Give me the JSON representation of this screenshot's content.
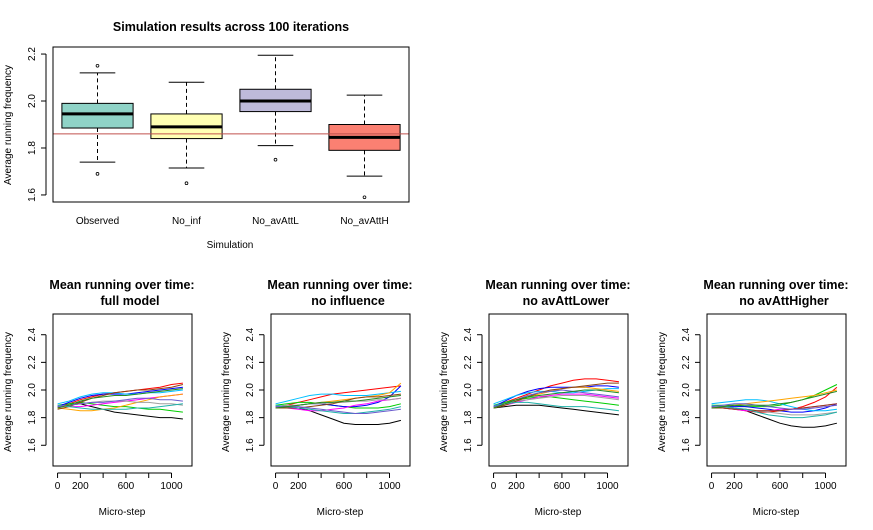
{
  "main": {
    "title": "Simulation results across 100 iterations",
    "xlabel": "Simulation",
    "ylabel": "Average running frequency",
    "reference_line_color": "#c0504d"
  },
  "chart_data": [
    {
      "type": "boxplot",
      "title": "Simulation results across 100 iterations",
      "xlabel": "Simulation",
      "ylabel": "Average running frequency",
      "ylim": [
        1.57,
        2.23
      ],
      "yticks": [
        1.6,
        1.8,
        2.0,
        2.2
      ],
      "reference_line": 1.86,
      "categories": [
        "Observed",
        "No_inf",
        "No_avAttL",
        "No_avAttH"
      ],
      "colors": [
        "#8fd3c7",
        "#ffffb3",
        "#bebada",
        "#fb8072"
      ],
      "boxes": [
        {
          "whisker_low": 1.74,
          "q1": 1.885,
          "median": 1.945,
          "q3": 1.99,
          "whisker_high": 2.12,
          "outliers": [
            1.69,
            2.15
          ]
        },
        {
          "whisker_low": 1.715,
          "q1": 1.84,
          "median": 1.89,
          "q3": 1.945,
          "whisker_high": 2.08,
          "outliers": [
            1.65
          ]
        },
        {
          "whisker_low": 1.81,
          "q1": 1.955,
          "median": 2.0,
          "q3": 2.05,
          "whisker_high": 2.195,
          "outliers": [
            1.75
          ]
        },
        {
          "whisker_low": 1.68,
          "q1": 1.79,
          "median": 1.845,
          "q3": 1.9,
          "whisker_high": 2.025,
          "outliers": [
            1.59
          ]
        }
      ]
    },
    {
      "type": "line",
      "title_line1": "Mean running over time:",
      "title_line2": "full model",
      "xlabel": "Micro-step",
      "ylabel": "Average running frequency",
      "xlim": [
        -40,
        1180
      ],
      "ylim": [
        1.45,
        2.55
      ],
      "xticks": [
        0,
        200,
        600,
        1000
      ],
      "xticklabels": [
        "0",
        "200",
        "600",
        "1000"
      ],
      "yticks": [
        1.6,
        1.8,
        2.0,
        2.2,
        2.4
      ],
      "x": [
        0,
        100,
        200,
        300,
        400,
        500,
        600,
        700,
        800,
        900,
        1000,
        1100
      ],
      "series": [
        {
          "color": "#000000",
          "values": [
            1.88,
            1.89,
            1.9,
            1.88,
            1.86,
            1.84,
            1.83,
            1.82,
            1.81,
            1.8,
            1.8,
            1.79
          ]
        },
        {
          "color": "#ff0000",
          "values": [
            1.87,
            1.9,
            1.93,
            1.95,
            1.97,
            1.98,
            1.99,
            2.0,
            2.01,
            2.02,
            2.04,
            2.05
          ]
        },
        {
          "color": "#00cd00",
          "values": [
            1.89,
            1.9,
            1.91,
            1.9,
            1.89,
            1.88,
            1.88,
            1.87,
            1.86,
            1.86,
            1.85,
            1.84
          ]
        },
        {
          "color": "#0000ff",
          "values": [
            1.88,
            1.91,
            1.94,
            1.96,
            1.97,
            1.97,
            1.97,
            1.98,
            1.99,
            2.0,
            2.01,
            2.02
          ]
        },
        {
          "color": "#00bfff",
          "values": [
            1.9,
            1.92,
            1.95,
            1.97,
            1.98,
            1.98,
            1.97,
            1.97,
            1.98,
            1.98,
            1.99,
            2.0
          ]
        },
        {
          "color": "#ff00ff",
          "values": [
            1.89,
            1.88,
            1.88,
            1.89,
            1.9,
            1.91,
            1.92,
            1.93,
            1.94,
            1.95,
            1.96,
            1.97
          ]
        },
        {
          "color": "#ffa500",
          "values": [
            1.87,
            1.86,
            1.85,
            1.85,
            1.86,
            1.87,
            1.89,
            1.91,
            1.93,
            1.95,
            1.96,
            1.97
          ]
        },
        {
          "color": "#a0a0a0",
          "values": [
            1.88,
            1.89,
            1.9,
            1.91,
            1.92,
            1.92,
            1.92,
            1.91,
            1.91,
            1.9,
            1.9,
            1.89
          ]
        },
        {
          "color": "#8b4513",
          "values": [
            1.86,
            1.88,
            1.91,
            1.94,
            1.96,
            1.98,
            1.99,
            2.0,
            2.0,
            2.01,
            2.02,
            2.04
          ]
        },
        {
          "color": "#20b2aa",
          "values": [
            1.89,
            1.88,
            1.87,
            1.86,
            1.86,
            1.86,
            1.86,
            1.87,
            1.87,
            1.88,
            1.89,
            1.9
          ]
        },
        {
          "color": "#6a5acd",
          "values": [
            1.88,
            1.89,
            1.9,
            1.91,
            1.91,
            1.92,
            1.93,
            1.94,
            1.94,
            1.93,
            1.93,
            1.92
          ]
        },
        {
          "color": "#228b22",
          "values": [
            1.87,
            1.89,
            1.92,
            1.94,
            1.95,
            1.96,
            1.96,
            1.97,
            1.98,
            1.99,
            2.0,
            2.01
          ]
        }
      ]
    },
    {
      "type": "line",
      "title_line1": "Mean running over time:",
      "title_line2": "no influence",
      "xlabel": "Micro-step",
      "ylabel": "Average running frequency",
      "xlim": [
        -40,
        1180
      ],
      "ylim": [
        1.45,
        2.55
      ],
      "xticks": [
        0,
        200,
        600,
        1000
      ],
      "xticklabels": [
        "0",
        "200",
        "600",
        "1000"
      ],
      "yticks": [
        1.6,
        1.8,
        2.0,
        2.2,
        2.4
      ],
      "x": [
        0,
        100,
        200,
        300,
        400,
        500,
        600,
        700,
        800,
        900,
        1000,
        1100
      ],
      "series": [
        {
          "color": "#000000",
          "values": [
            1.88,
            1.88,
            1.87,
            1.85,
            1.82,
            1.79,
            1.76,
            1.75,
            1.75,
            1.75,
            1.76,
            1.78
          ]
        },
        {
          "color": "#ff0000",
          "values": [
            1.88,
            1.89,
            1.91,
            1.93,
            1.95,
            1.97,
            1.98,
            1.99,
            2.0,
            2.01,
            2.02,
            2.03
          ]
        },
        {
          "color": "#00cd00",
          "values": [
            1.89,
            1.9,
            1.91,
            1.91,
            1.9,
            1.89,
            1.88,
            1.87,
            1.87,
            1.87,
            1.88,
            1.9
          ]
        },
        {
          "color": "#0000ff",
          "values": [
            1.87,
            1.88,
            1.89,
            1.9,
            1.9,
            1.89,
            1.88,
            1.88,
            1.89,
            1.91,
            1.95,
            2.03
          ]
        },
        {
          "color": "#00bfff",
          "values": [
            1.9,
            1.92,
            1.94,
            1.96,
            1.97,
            1.97,
            1.96,
            1.96,
            1.96,
            1.97,
            1.98,
            1.99
          ]
        },
        {
          "color": "#ff00ff",
          "values": [
            1.88,
            1.87,
            1.86,
            1.85,
            1.85,
            1.86,
            1.87,
            1.89,
            1.9,
            1.92,
            1.93,
            1.94
          ]
        },
        {
          "color": "#ffa500",
          "values": [
            1.87,
            1.88,
            1.89,
            1.9,
            1.91,
            1.92,
            1.93,
            1.94,
            1.95,
            1.96,
            1.98,
            2.05
          ]
        },
        {
          "color": "#a0a0a0",
          "values": [
            1.88,
            1.89,
            1.89,
            1.9,
            1.9,
            1.91,
            1.91,
            1.92,
            1.92,
            1.93,
            1.93,
            1.94
          ]
        },
        {
          "color": "#8b4513",
          "values": [
            1.87,
            1.87,
            1.87,
            1.88,
            1.89,
            1.9,
            1.92,
            1.94,
            1.95,
            1.95,
            1.96,
            1.97
          ]
        },
        {
          "color": "#20b2aa",
          "values": [
            1.89,
            1.88,
            1.87,
            1.86,
            1.85,
            1.84,
            1.83,
            1.83,
            1.84,
            1.85,
            1.86,
            1.88
          ]
        },
        {
          "color": "#6a5acd",
          "values": [
            1.88,
            1.88,
            1.88,
            1.87,
            1.86,
            1.85,
            1.84,
            1.83,
            1.83,
            1.84,
            1.85,
            1.86
          ]
        },
        {
          "color": "#228b22",
          "values": [
            1.87,
            1.88,
            1.89,
            1.9,
            1.91,
            1.91,
            1.92,
            1.92,
            1.93,
            1.94,
            1.95,
            1.96
          ]
        }
      ]
    },
    {
      "type": "line",
      "title_line1": "Mean running over time:",
      "title_line2": "no avAttLower",
      "xlabel": "Micro-step",
      "ylabel": "Average running frequency",
      "xlim": [
        -40,
        1180
      ],
      "ylim": [
        1.45,
        2.55
      ],
      "xticks": [
        0,
        200,
        600,
        1000
      ],
      "xticklabels": [
        "0",
        "200",
        "600",
        "1000"
      ],
      "yticks": [
        1.6,
        1.8,
        2.0,
        2.2,
        2.4
      ],
      "x": [
        0,
        100,
        200,
        300,
        400,
        500,
        600,
        700,
        800,
        900,
        1000,
        1100
      ],
      "series": [
        {
          "color": "#000000",
          "values": [
            1.87,
            1.88,
            1.89,
            1.89,
            1.89,
            1.88,
            1.87,
            1.86,
            1.85,
            1.84,
            1.83,
            1.82
          ]
        },
        {
          "color": "#ff0000",
          "values": [
            1.88,
            1.91,
            1.94,
            1.97,
            2.0,
            2.03,
            2.05,
            2.07,
            2.08,
            2.08,
            2.07,
            2.06
          ]
        },
        {
          "color": "#00cd00",
          "values": [
            1.89,
            1.91,
            1.93,
            1.94,
            1.95,
            1.95,
            1.94,
            1.93,
            1.92,
            1.91,
            1.9,
            1.89
          ]
        },
        {
          "color": "#0000ff",
          "values": [
            1.88,
            1.92,
            1.96,
            1.99,
            2.01,
            2.02,
            2.02,
            2.02,
            2.02,
            2.03,
            2.03,
            2.02
          ]
        },
        {
          "color": "#00bfff",
          "values": [
            1.9,
            1.93,
            1.96,
            1.98,
            1.99,
            1.99,
            1.98,
            1.98,
            1.99,
            2.0,
            2.01,
            2.01
          ]
        },
        {
          "color": "#ff00ff",
          "values": [
            1.88,
            1.89,
            1.91,
            1.93,
            1.95,
            1.96,
            1.97,
            1.97,
            1.97,
            1.96,
            1.95,
            1.94
          ]
        },
        {
          "color": "#ffa500",
          "values": [
            1.87,
            1.89,
            1.92,
            1.95,
            1.97,
            1.99,
            2.01,
            2.02,
            2.02,
            2.01,
            2.0,
            1.99
          ]
        },
        {
          "color": "#a0a0a0",
          "values": [
            1.88,
            1.9,
            1.92,
            1.93,
            1.94,
            1.95,
            1.96,
            1.96,
            1.96,
            1.95,
            1.94,
            1.93
          ]
        },
        {
          "color": "#8b4513",
          "values": [
            1.87,
            1.89,
            1.92,
            1.95,
            1.98,
            2.0,
            2.01,
            2.02,
            2.03,
            2.04,
            2.05,
            2.05
          ]
        },
        {
          "color": "#20b2aa",
          "values": [
            1.89,
            1.9,
            1.91,
            1.91,
            1.9,
            1.89,
            1.88,
            1.88,
            1.88,
            1.87,
            1.86,
            1.85
          ]
        },
        {
          "color": "#6a5acd",
          "values": [
            1.88,
            1.9,
            1.93,
            1.96,
            1.98,
            1.99,
            2.0,
            1.99,
            1.98,
            1.97,
            1.96,
            1.95
          ]
        },
        {
          "color": "#228b22",
          "values": [
            1.87,
            1.9,
            1.93,
            1.95,
            1.96,
            1.97,
            1.98,
            1.99,
            2.0,
            2.0,
            1.99,
            1.98
          ]
        }
      ]
    },
    {
      "type": "line",
      "title_line1": "Mean running over time:",
      "title_line2": "no avAttHigher",
      "xlabel": "Micro-step",
      "ylabel": "Average running frequency",
      "xlim": [
        -40,
        1180
      ],
      "ylim": [
        1.45,
        2.55
      ],
      "xticks": [
        0,
        200,
        600,
        1000
      ],
      "xticklabels": [
        "0",
        "200",
        "600",
        "1000"
      ],
      "yticks": [
        1.6,
        1.8,
        2.0,
        2.2,
        2.4
      ],
      "x": [
        0,
        100,
        200,
        300,
        400,
        500,
        600,
        700,
        800,
        900,
        1000,
        1100
      ],
      "series": [
        {
          "color": "#000000",
          "values": [
            1.88,
            1.88,
            1.87,
            1.85,
            1.82,
            1.79,
            1.76,
            1.74,
            1.73,
            1.73,
            1.74,
            1.76
          ]
        },
        {
          "color": "#ff0000",
          "values": [
            1.88,
            1.87,
            1.86,
            1.85,
            1.84,
            1.84,
            1.85,
            1.86,
            1.88,
            1.91,
            1.95,
            2.02
          ]
        },
        {
          "color": "#00cd00",
          "values": [
            1.89,
            1.89,
            1.89,
            1.88,
            1.88,
            1.88,
            1.89,
            1.91,
            1.93,
            1.96,
            2.0,
            2.04
          ]
        },
        {
          "color": "#0000ff",
          "values": [
            1.87,
            1.88,
            1.88,
            1.88,
            1.87,
            1.86,
            1.85,
            1.84,
            1.84,
            1.85,
            1.87,
            1.9
          ]
        },
        {
          "color": "#00bfff",
          "values": [
            1.9,
            1.91,
            1.92,
            1.93,
            1.93,
            1.92,
            1.9,
            1.88,
            1.86,
            1.85,
            1.85,
            1.86
          ]
        },
        {
          "color": "#ff00ff",
          "values": [
            1.88,
            1.87,
            1.86,
            1.85,
            1.85,
            1.85,
            1.86,
            1.86,
            1.87,
            1.88,
            1.89,
            1.9
          ]
        },
        {
          "color": "#ffa500",
          "values": [
            1.87,
            1.88,
            1.89,
            1.9,
            1.91,
            1.92,
            1.93,
            1.94,
            1.95,
            1.96,
            1.98,
            2.0
          ]
        },
        {
          "color": "#a0a0a0",
          "values": [
            1.88,
            1.88,
            1.87,
            1.86,
            1.85,
            1.84,
            1.83,
            1.82,
            1.82,
            1.82,
            1.83,
            1.84
          ]
        },
        {
          "color": "#8b4513",
          "values": [
            1.87,
            1.87,
            1.86,
            1.86,
            1.85,
            1.85,
            1.85,
            1.86,
            1.87,
            1.88,
            1.89,
            1.9
          ]
        },
        {
          "color": "#20b2aa",
          "values": [
            1.89,
            1.88,
            1.87,
            1.86,
            1.84,
            1.82,
            1.81,
            1.8,
            1.8,
            1.81,
            1.82,
            1.84
          ]
        },
        {
          "color": "#6a5acd",
          "values": [
            1.88,
            1.89,
            1.9,
            1.9,
            1.89,
            1.88,
            1.87,
            1.86,
            1.86,
            1.87,
            1.88,
            1.89
          ]
        },
        {
          "color": "#228b22",
          "values": [
            1.87,
            1.88,
            1.89,
            1.89,
            1.89,
            1.89,
            1.9,
            1.91,
            1.93,
            1.95,
            1.97,
            1.99
          ]
        }
      ]
    }
  ]
}
